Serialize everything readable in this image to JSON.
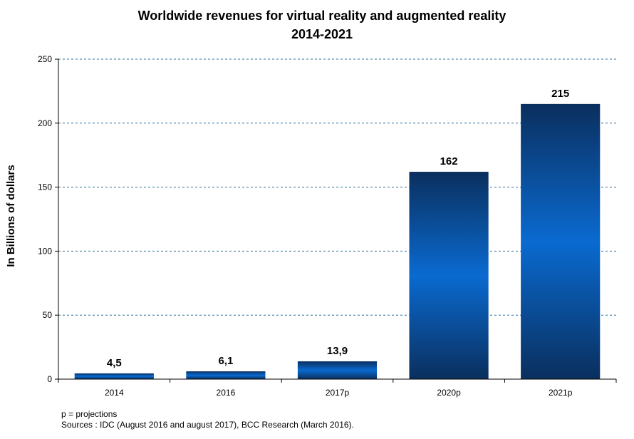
{
  "chart_data": {
    "type": "bar",
    "title_line1": "Worldwide revenues for virtual reality and augmented reality",
    "title_line2": "2014-2021",
    "xlabel": "",
    "ylabel": "In Billions of dollars",
    "categories": [
      "2014",
      "2016",
      "2017p",
      "2020p",
      "2021p"
    ],
    "values": [
      4.5,
      6.1,
      13.9,
      162,
      215
    ],
    "value_labels": [
      "4,5",
      "6,1",
      "13,9",
      "162",
      "215"
    ],
    "ylim": [
      0,
      250
    ],
    "yticks": [
      0,
      50,
      100,
      150,
      200,
      250
    ],
    "grid": true,
    "bar_color_dark": "#0a2f5e",
    "bar_color_light": "#0a6ad0",
    "grid_color": "#2f6f9a"
  },
  "footnote": {
    "line1": "p = projections",
    "line2": "Sources : IDC (August 2016 and august 2017), BCC Research (March 2016)."
  }
}
